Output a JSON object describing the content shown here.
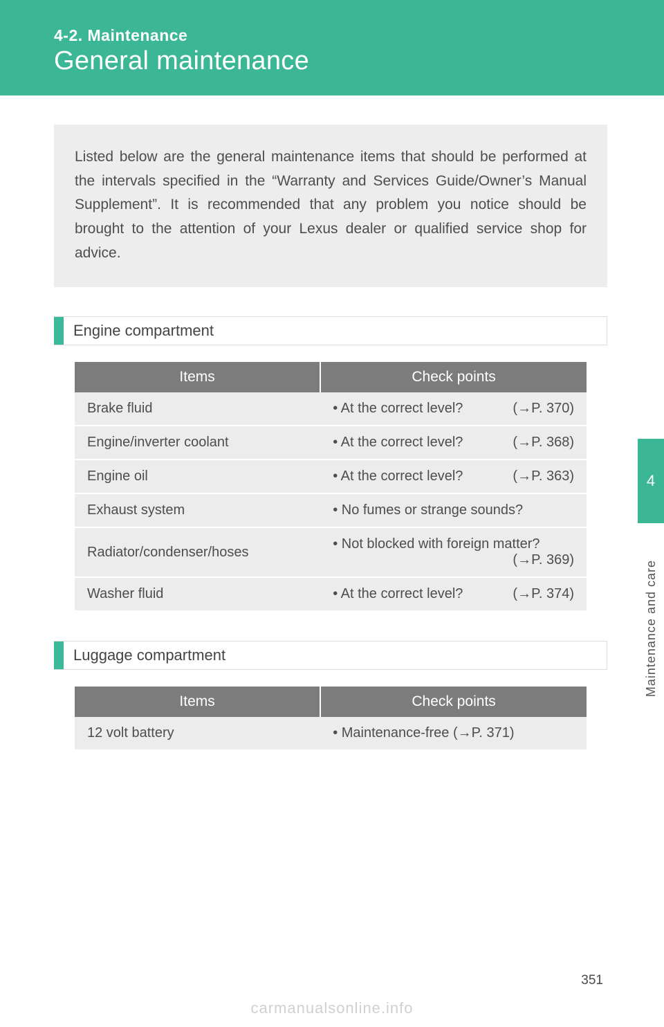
{
  "header": {
    "breadcrumb": "4-2. Maintenance",
    "title": "General maintenance"
  },
  "intro": "Listed below are the general maintenance items that should be performed at the intervals specified in the “Warranty and Services Guide/Owner’s Manual Supplement”. It is recommended that any problem you notice should be brought to the attention of your Lexus dealer or qualified service shop for advice.",
  "sections": [
    {
      "heading": "Engine compartment",
      "columns": [
        "Items",
        "Check points"
      ],
      "rows": [
        {
          "item": "Brake fluid",
          "check": "• At the correct level?",
          "ref": "(→P. 370)"
        },
        {
          "item": "Engine/inverter coolant",
          "check": "• At the correct level?",
          "ref": "(→P. 368)"
        },
        {
          "item": "Engine oil",
          "check": "• At the correct level?",
          "ref": "(→P. 363)"
        },
        {
          "item": "Exhaust system",
          "check": "• No fumes or strange sounds?",
          "ref": ""
        },
        {
          "item": "Radiator/condenser/hoses",
          "check": "• Not blocked with foreign matter?",
          "ref": "(→P. 369)"
        },
        {
          "item": "Washer fluid",
          "check": "• At the correct level?",
          "ref": "(→P. 374)"
        }
      ]
    },
    {
      "heading": "Luggage compartment",
      "columns": [
        "Items",
        "Check points"
      ],
      "rows": [
        {
          "item": "12 volt battery",
          "check": "• Maintenance-free (→P. 371)",
          "ref": ""
        }
      ]
    }
  ],
  "side_tab": "4",
  "side_label": "Maintenance and care",
  "page_number": "351",
  "watermark": "carmanualsonline.info",
  "colors": {
    "accent": "#3bb795",
    "header_gray": "#7c7c7c",
    "row_bg": "#ececec",
    "intro_bg": "#ededed",
    "text": "#4d4d4d",
    "watermark": "#d0d0d0"
  }
}
